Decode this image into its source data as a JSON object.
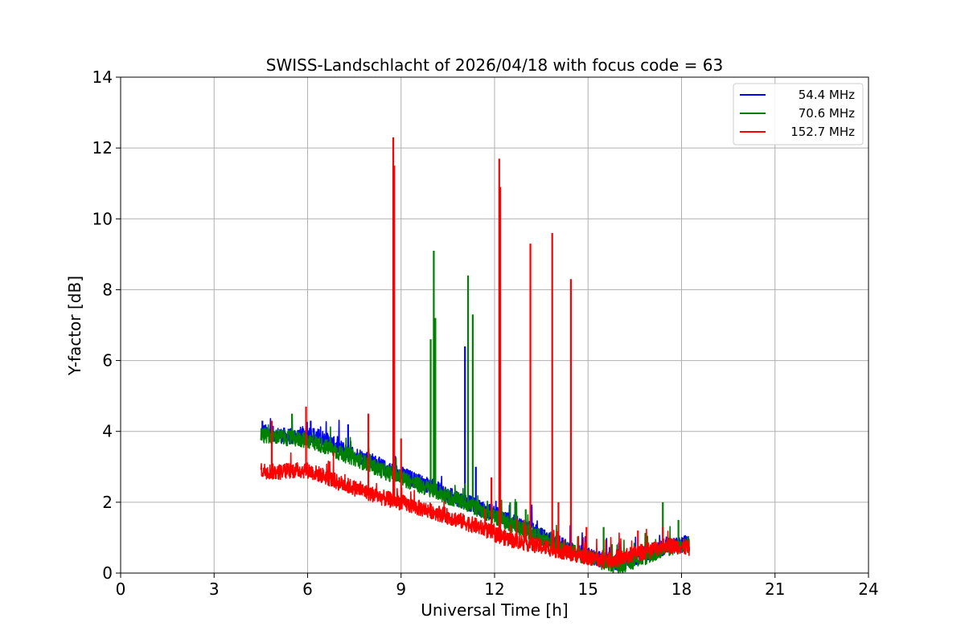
{
  "chart_data": {
    "type": "line",
    "title": "SWISS-Landschlacht of 2026/04/18 with focus code = 63",
    "xlabel": "Universal Time [h]",
    "ylabel": "Y-factor [dB]",
    "xlim": [
      0,
      24
    ],
    "ylim": [
      0,
      14
    ],
    "xticks": [
      0,
      3,
      6,
      9,
      12,
      15,
      18,
      21,
      24
    ],
    "yticks": [
      0,
      2,
      4,
      6,
      8,
      10,
      12,
      14
    ],
    "grid": true,
    "legend_position": "top-right",
    "series": [
      {
        "name": "54.4 MHz",
        "color": "#0000ff",
        "x": [
          4.5,
          5.0,
          5.5,
          6.0,
          6.5,
          7.0,
          7.5,
          8.0,
          8.5,
          9.0,
          9.5,
          10.0,
          10.5,
          11.0,
          11.5,
          12.0,
          12.5,
          13.0,
          13.5,
          14.0,
          14.5,
          15.0,
          15.5,
          16.0,
          16.5,
          17.0,
          17.5,
          18.0,
          18.25
        ],
        "y": [
          4.0,
          3.9,
          3.85,
          3.95,
          3.8,
          3.55,
          3.35,
          3.2,
          2.95,
          2.8,
          2.6,
          2.45,
          2.2,
          2.05,
          1.85,
          1.7,
          1.45,
          1.3,
          1.05,
          0.85,
          0.65,
          0.5,
          0.35,
          0.3,
          0.45,
          0.6,
          0.75,
          0.8,
          0.9
        ],
        "spikes": [
          [
            4.55,
            4.3
          ],
          [
            6.1,
            4.3
          ],
          [
            7.3,
            4.2
          ],
          [
            11.05,
            6.4
          ],
          [
            11.4,
            3.0
          ]
        ]
      },
      {
        "name": "70.6 MHz",
        "color": "#008000",
        "x": [
          4.5,
          5.0,
          5.5,
          6.0,
          6.5,
          7.0,
          7.5,
          8.0,
          8.5,
          9.0,
          9.5,
          10.0,
          10.5,
          11.0,
          11.5,
          12.0,
          12.5,
          13.0,
          13.5,
          14.0,
          14.5,
          15.0,
          15.5,
          16.0,
          16.5,
          17.0,
          17.5,
          18.0,
          18.25
        ],
        "y": [
          3.9,
          3.85,
          3.8,
          3.75,
          3.6,
          3.4,
          3.25,
          3.05,
          2.85,
          2.7,
          2.5,
          2.35,
          2.15,
          2.0,
          1.8,
          1.6,
          1.4,
          1.2,
          1.0,
          0.8,
          0.6,
          0.45,
          0.3,
          0.2,
          0.35,
          0.5,
          0.7,
          0.75,
          0.8
        ],
        "spikes": [
          [
            5.5,
            4.5
          ],
          [
            9.95,
            6.6
          ],
          [
            10.05,
            9.1
          ],
          [
            10.1,
            7.2
          ],
          [
            11.15,
            8.4
          ],
          [
            11.3,
            7.3
          ],
          [
            12.5,
            2.0
          ],
          [
            13.0,
            1.8
          ],
          [
            15.5,
            1.3
          ],
          [
            17.4,
            2.0
          ],
          [
            17.9,
            1.5
          ]
        ]
      },
      {
        "name": "152.7 MHz",
        "color": "#ff0000",
        "x": [
          4.5,
          5.0,
          5.5,
          6.0,
          6.5,
          7.0,
          7.5,
          8.0,
          8.5,
          9.0,
          9.5,
          10.0,
          10.5,
          11.0,
          11.5,
          12.0,
          12.5,
          13.0,
          13.5,
          14.0,
          14.5,
          15.0,
          15.5,
          16.0,
          16.5,
          17.0,
          17.5,
          18.0,
          18.25
        ],
        "y": [
          2.9,
          2.85,
          2.9,
          2.9,
          2.75,
          2.55,
          2.4,
          2.25,
          2.1,
          2.0,
          1.85,
          1.75,
          1.6,
          1.45,
          1.3,
          1.1,
          0.95,
          0.85,
          0.75,
          0.65,
          0.55,
          0.45,
          0.35,
          0.4,
          0.55,
          0.65,
          0.8,
          0.75,
          0.7
        ],
        "spikes": [
          [
            4.85,
            4.3
          ],
          [
            5.95,
            4.7
          ],
          [
            7.95,
            4.5
          ],
          [
            8.75,
            12.3
          ],
          [
            8.78,
            11.5
          ],
          [
            9.0,
            3.8
          ],
          [
            11.9,
            2.7
          ],
          [
            12.15,
            11.7
          ],
          [
            12.18,
            10.9
          ],
          [
            13.15,
            9.3
          ],
          [
            13.85,
            9.6
          ],
          [
            14.05,
            2.0
          ],
          [
            14.45,
            8.3
          ],
          [
            14.95,
            1.3
          ],
          [
            16.6,
            1.2
          ],
          [
            17.4,
            1.3
          ]
        ]
      }
    ]
  }
}
